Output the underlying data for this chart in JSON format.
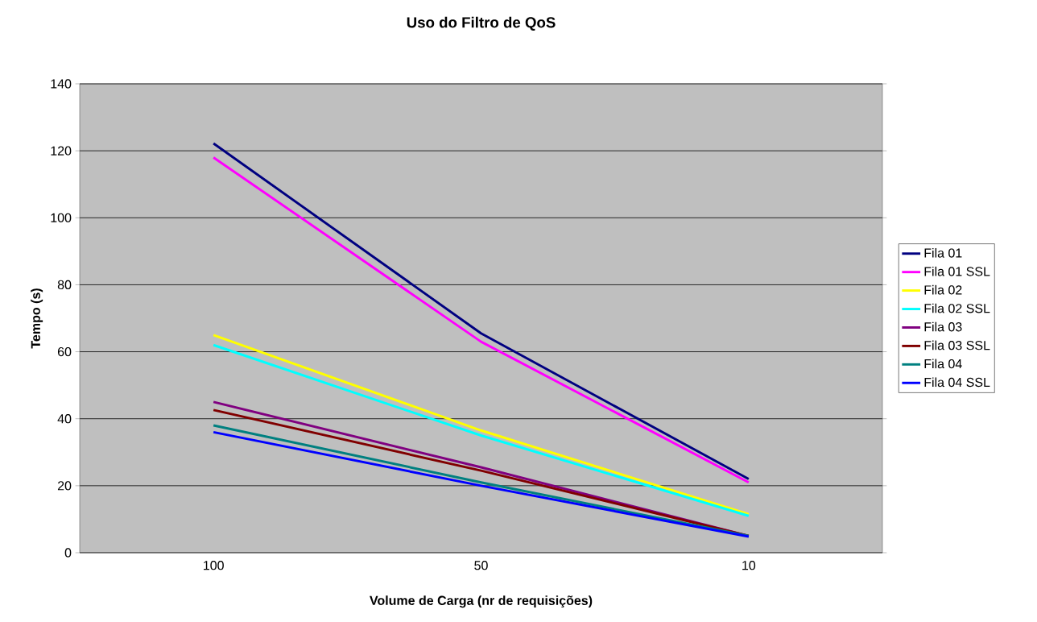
{
  "chart_data": {
    "type": "line",
    "title": "Uso do Filtro de QoS",
    "xlabel": "Volume de Carga (nr de requisições)",
    "ylabel": "Tempo (s)",
    "categories": [
      "100",
      "50",
      "10"
    ],
    "series": [
      {
        "name": "Fila 01",
        "color": "#000080",
        "values": [
          122.2,
          65.5,
          22
        ]
      },
      {
        "name": "Fila 01 SSL",
        "color": "#ff00ff",
        "values": [
          118,
          63,
          21
        ]
      },
      {
        "name": "Fila 02",
        "color": "#ffff00",
        "values": [
          65,
          36.5,
          11.5
        ]
      },
      {
        "name": "Fila 02 SSL",
        "color": "#00ffff",
        "values": [
          62,
          35,
          11
        ]
      },
      {
        "name": "Fila 03",
        "color": "#800080",
        "values": [
          45,
          25.5,
          5
        ]
      },
      {
        "name": "Fila 03 SSL",
        "color": "#800000",
        "values": [
          42.6,
          24.5,
          5
        ]
      },
      {
        "name": "Fila 04",
        "color": "#008080",
        "values": [
          38,
          21,
          5
        ]
      },
      {
        "name": "Fila 04 SSL",
        "color": "#0000ff",
        "values": [
          36,
          20,
          4.8
        ]
      }
    ],
    "ylim": [
      0,
      140
    ],
    "yticks": [
      0,
      20,
      40,
      60,
      80,
      100,
      120,
      140
    ],
    "grid": "y",
    "legend": "right",
    "marker": "none",
    "line_style": "solid"
  }
}
